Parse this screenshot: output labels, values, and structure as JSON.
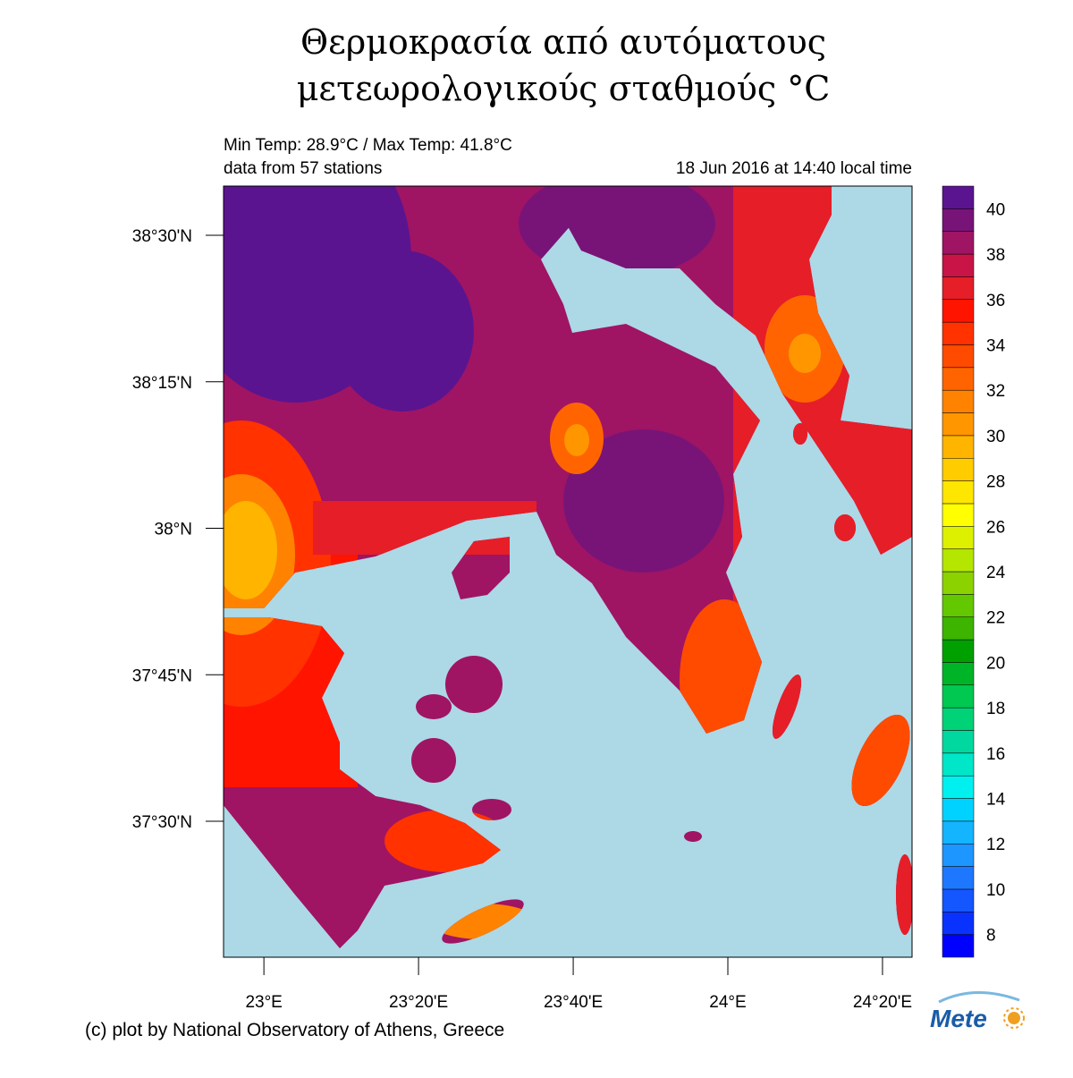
{
  "header": {
    "title_line1": "Θερμοκρασία από αυτόματους",
    "title_line2": "μετεωρολογικούς σταθμούς °C",
    "min_max": "Min Temp: 28.9°C / Max Temp: 41.8°C",
    "stations": "data from 57 stations",
    "datetime": "18 Jun 2016 at 14:40 local time"
  },
  "map": {
    "latlim": [
      37.268,
      38.584
    ],
    "lonlim": [
      22.913,
      24.397
    ],
    "yticks": [
      {
        "value": 38.5,
        "label": "38°30'N"
      },
      {
        "value": 38.25,
        "label": "38°15'N"
      },
      {
        "value": 38,
        "label": "38°N"
      },
      {
        "value": 37.75,
        "label": "37°45'N"
      },
      {
        "value": 37.5,
        "label": "37°30'N"
      }
    ],
    "xticks": [
      {
        "value": 23,
        "label": "23°E"
      },
      {
        "value": 23.3333,
        "label": "23°20'E"
      },
      {
        "value": 23.6667,
        "label": "23°40'E"
      },
      {
        "value": 24,
        "label": "24°E"
      },
      {
        "value": 24.3333,
        "label": "24°20'E"
      }
    ]
  },
  "colorbar": {
    "lim": [
      7,
      41
    ],
    "ticks": [
      8,
      10,
      12,
      14,
      16,
      18,
      20,
      22,
      24,
      26,
      28,
      30,
      32,
      34,
      36,
      38,
      40
    ],
    "colors": [
      "#0000ff",
      "#0a32ff",
      "#1456ff",
      "#1e78ff",
      "#1e96ff",
      "#14b4ff",
      "#00d2ff",
      "#00f0f0",
      "#00e6c8",
      "#00d8a0",
      "#00d278",
      "#00c850",
      "#00b428",
      "#00a000",
      "#3cb400",
      "#64c800",
      "#8cd200",
      "#b4e600",
      "#dcf000",
      "#ffff00",
      "#ffe600",
      "#ffcc00",
      "#ffb400",
      "#ff9600",
      "#ff8200",
      "#ff6400",
      "#ff4b00",
      "#ff3200",
      "#ff1400",
      "#e61e28",
      "#c81446",
      "#a01464",
      "#781478",
      "#5a1490"
    ]
  },
  "footer": {
    "credit": "(c) plot by National Observatory of Athens, Greece",
    "logo": "Mete"
  }
}
